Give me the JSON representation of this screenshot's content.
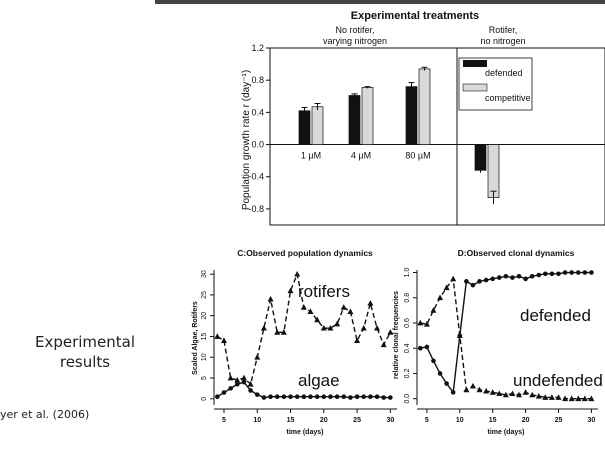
{
  "side_label": {
    "line1": "Experimental",
    "line2": "results"
  },
  "citation": "yer et al.  (2006)",
  "chart_data": [
    {
      "type": "bar",
      "title": "Experimental treatments",
      "group_headers": [
        {
          "line1": "No rotifer,",
          "line2": "varying nitrogen"
        },
        {
          "line1": "Rotifer,",
          "line2": "no nitrogen"
        }
      ],
      "ylabel": "Population growth rate r (day⁻¹)",
      "ylim": [
        -1.0,
        1.2
      ],
      "yticks": [
        -0.8,
        -0.4,
        0.0,
        0.4,
        0.8,
        1.2
      ],
      "ytick_labels": [
        "-0.8",
        "-0.4",
        "0.0",
        "0.4",
        "0.8",
        "1.2"
      ],
      "categories": [
        "1 µM",
        "4 µM",
        "80 µM",
        ""
      ],
      "series": [
        {
          "name": "defended",
          "values": [
            0.42,
            0.61,
            0.72,
            -0.32
          ],
          "errors": [
            0.04,
            0.02,
            0.05,
            0.03
          ],
          "color": "#111111"
        },
        {
          "name": "competitive",
          "values": [
            0.47,
            0.71,
            0.94,
            -0.66
          ],
          "errors": [
            0.04,
            0.01,
            0.02,
            0.08
          ],
          "color": "#d9d9d9"
        }
      ],
      "legend_position": "top-right"
    },
    {
      "type": "line",
      "title": "C:Observed population dynamics",
      "xlabel": "time (days)",
      "ylabel": "Scaled Algae, Rotifers",
      "xlim": [
        3.5,
        31
      ],
      "ylim": [
        -1.5,
        31
      ],
      "xticks": [
        5,
        10,
        15,
        20,
        25,
        30
      ],
      "yticks": [
        0,
        5,
        10,
        15,
        20,
        25,
        30
      ],
      "series": [
        {
          "name": "rotifers",
          "style": "dashed",
          "marker": "triangle",
          "x": [
            4,
            5,
            6,
            7,
            8,
            9,
            10,
            11,
            12,
            13,
            14,
            15,
            16,
            17,
            18,
            19,
            20,
            21,
            22,
            23,
            24,
            25,
            26,
            27,
            28,
            29,
            30
          ],
          "y": [
            15,
            14,
            5,
            4.5,
            5,
            3.5,
            10,
            17,
            24,
            16,
            16,
            26,
            30,
            22,
            21,
            19,
            17,
            17,
            18,
            22,
            21,
            14,
            17,
            23,
            17,
            13,
            16
          ]
        },
        {
          "name": "algae",
          "style": "solid",
          "marker": "circle",
          "x": [
            4,
            5,
            6,
            7,
            8,
            9,
            10,
            11,
            12,
            13,
            14,
            15,
            16,
            17,
            18,
            19,
            20,
            21,
            22,
            23,
            24,
            25,
            26,
            27,
            28,
            29,
            30
          ],
          "y": [
            0.5,
            1.5,
            2.5,
            3.5,
            4,
            2,
            1,
            0.3,
            0.5,
            0.5,
            0.5,
            0.5,
            0.5,
            0.5,
            0.5,
            0.5,
            0.5,
            0.5,
            0.5,
            0.5,
            0.3,
            0.5,
            0.5,
            0.5,
            0.5,
            0.3,
            0.3
          ]
        }
      ]
    },
    {
      "type": "line",
      "title": "D:Observed clonal dynamics",
      "xlabel": "time (days)",
      "ylabel": "relative clonal frequencies",
      "xlim": [
        3.5,
        31
      ],
      "ylim": [
        -0.05,
        1.02
      ],
      "xticks": [
        5,
        10,
        15,
        20,
        25,
        30
      ],
      "xtick_labels": [
        "5",
        "10",
        "15",
        "20",
        "25",
        "30"
      ],
      "yticks": [
        0.0,
        0.2,
        0.4,
        0.6,
        0.8,
        1.0
      ],
      "ytick_labels": [
        "0.0",
        "0.2",
        "0.4",
        "0.6",
        "0.8",
        "1.0"
      ],
      "series": [
        {
          "name": "defended",
          "style": "solid",
          "marker": "circle",
          "x": [
            4,
            5,
            6,
            7,
            8,
            9,
            10,
            11,
            12,
            13,
            14,
            15,
            16,
            17,
            18,
            19,
            20,
            21,
            22,
            23,
            24,
            25,
            26,
            27,
            28,
            29,
            30
          ],
          "y": [
            0.4,
            0.41,
            0.3,
            0.2,
            0.12,
            0.05,
            0.5,
            0.93,
            0.9,
            0.93,
            0.94,
            0.95,
            0.96,
            0.97,
            0.96,
            0.97,
            0.95,
            0.97,
            0.98,
            0.99,
            0.99,
            0.99,
            1.0,
            1.0,
            1.0,
            1.0,
            1.0
          ]
        },
        {
          "name": "undefended",
          "style": "dashed",
          "marker": "triangle",
          "x": [
            4,
            5,
            6,
            7,
            8,
            9,
            10,
            11,
            12,
            13,
            14,
            15,
            16,
            17,
            18,
            19,
            20,
            21,
            22,
            23,
            24,
            25,
            26,
            27,
            28,
            29,
            30
          ],
          "y": [
            0.6,
            0.59,
            0.7,
            0.8,
            0.88,
            0.95,
            0.5,
            0.07,
            0.1,
            0.07,
            0.06,
            0.05,
            0.04,
            0.03,
            0.04,
            0.03,
            0.05,
            0.03,
            0.02,
            0.01,
            0.01,
            0.01,
            0.0,
            0.0,
            0.0,
            0.0,
            0.0
          ]
        }
      ]
    }
  ]
}
